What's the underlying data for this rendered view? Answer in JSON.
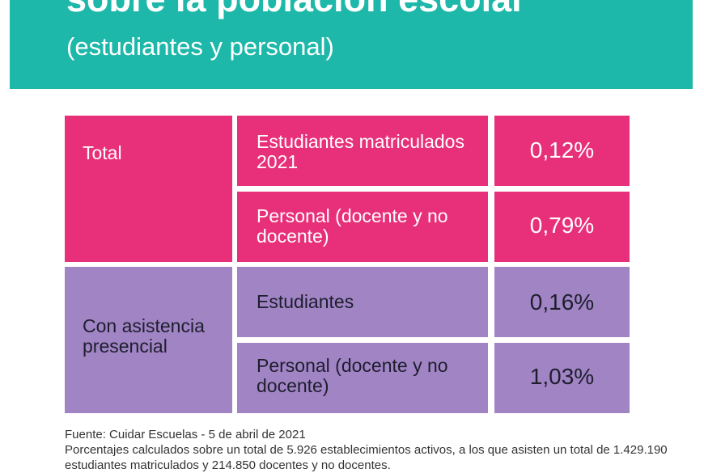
{
  "header": {
    "title": "sobre la población escolar",
    "subtitle": "(estudiantes y personal)"
  },
  "table": {
    "groups": [
      {
        "label": "Total",
        "rows": [
          {
            "label": "Estudiantes matriculados 2021",
            "value": "0,12%"
          },
          {
            "label": "Personal (docente y no docente)",
            "value": "0,79%"
          }
        ]
      },
      {
        "label": "Con asistencia presencial",
        "rows": [
          {
            "label": "Estudiantes",
            "value": "0,16%"
          },
          {
            "label": "Personal (docente y no docente)",
            "value": "1,03%"
          }
        ]
      }
    ]
  },
  "footnotes": {
    "source": "Fuente: Cuidar Escuelas - 5 de abril de 2021",
    "note": "Porcentajes calculados sobre un total de 5.926 establecimientos activos, a los que asisten un total de 1.429.190 estudiantes matriculados y 214.850 docentes y no docentes."
  },
  "colors": {
    "header": "#1db8a9",
    "pink": "#e8307a",
    "purple": "#a084c4"
  }
}
